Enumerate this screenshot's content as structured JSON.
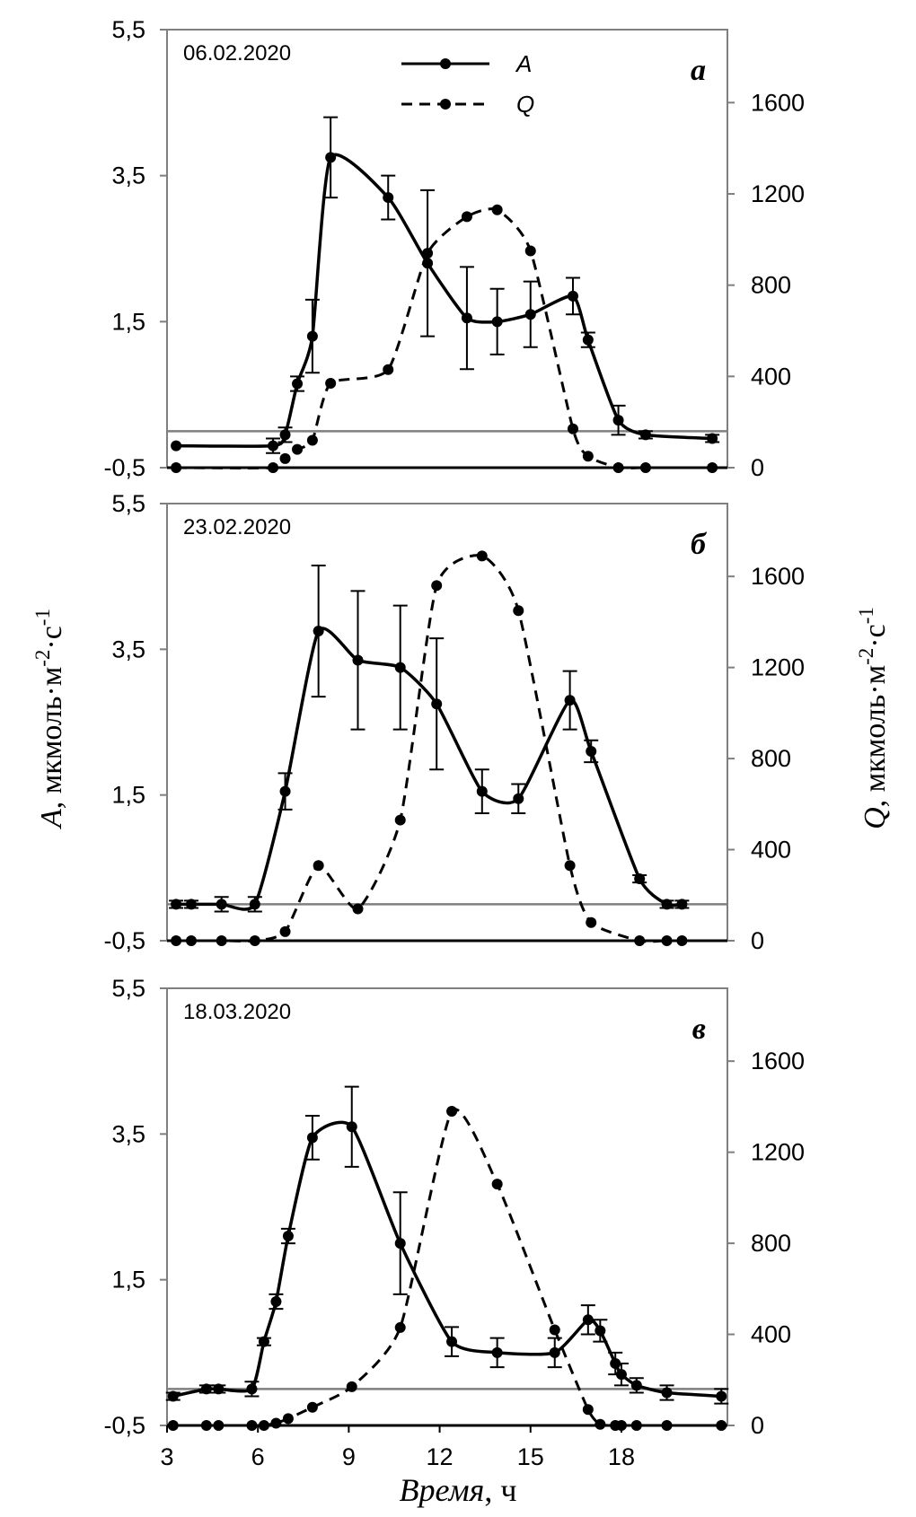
{
  "chart_data": {
    "type": "line",
    "xlabel": {
      "var": "Время",
      "unit": ", ч"
    },
    "ylabel_left": {
      "var": "A",
      "unit": ", мкмоль·м",
      "exp1": "-2",
      "mid": "·с",
      "exp2": "-1"
    },
    "ylabel_right": {
      "var": "Q",
      "unit": ", мкмоль·м",
      "exp1": "-2",
      "mid": "·с",
      "exp2": "-1"
    },
    "x_ticks": [
      3,
      6,
      9,
      12,
      15,
      18
    ],
    "x_tick_labels": [
      "3",
      "6",
      "9",
      "12",
      "15",
      "18"
    ],
    "xlim": [
      3,
      21.5
    ],
    "left_ylim": [
      -0.5,
      5.5
    ],
    "left_ticks": [
      "5,5",
      "3,5",
      "1,5",
      "-0,5"
    ],
    "left_tick_values": [
      5.5,
      3.5,
      1.5,
      -0.5
    ],
    "right_ylim": [
      0,
      1920
    ],
    "right_ticks": [
      "1600",
      "1200",
      "800",
      "400",
      "0"
    ],
    "right_tick_values": [
      1600,
      1200,
      800,
      400,
      0
    ],
    "reference_line_A": 0,
    "legend": [
      {
        "name": "A",
        "style": "solid"
      },
      {
        "name": "Q",
        "style": "dashed"
      }
    ],
    "panels": [
      {
        "date": "06.02.2020",
        "letter": "а",
        "A": {
          "x": [
            3.3,
            6.5,
            6.9,
            7.3,
            7.8,
            8.4,
            10.3,
            11.6,
            12.9,
            13.9,
            15.0,
            16.4,
            16.9,
            17.9,
            18.8,
            21.0
          ],
          "y": [
            -0.2,
            -0.2,
            -0.05,
            0.65,
            1.3,
            3.75,
            3.2,
            2.3,
            1.55,
            1.5,
            1.6,
            1.85,
            1.25,
            0.15,
            -0.05,
            -0.1
          ],
          "err": [
            0,
            0.1,
            0.1,
            0.1,
            0.5,
            0.55,
            0.3,
            1.0,
            0.7,
            0.45,
            0.45,
            0.25,
            0.1,
            0.2,
            0.05,
            0.05
          ]
        },
        "Q": {
          "x": [
            3.3,
            6.5,
            6.9,
            7.3,
            7.8,
            8.4,
            10.3,
            11.6,
            12.9,
            13.9,
            15.0,
            16.4,
            16.9,
            17.9,
            18.8,
            21.0
          ],
          "y": [
            0,
            0,
            40,
            80,
            120,
            370,
            430,
            940,
            1100,
            1130,
            950,
            170,
            50,
            0,
            0,
            0
          ]
        }
      },
      {
        "date": "23.02.2020",
        "letter": "б",
        "A": {
          "x": [
            3.3,
            3.8,
            4.8,
            5.9,
            6.9,
            8.0,
            9.3,
            10.7,
            11.9,
            13.4,
            14.6,
            16.3,
            17.0,
            18.6,
            19.5,
            20.0
          ],
          "y": [
            0,
            0,
            0,
            0,
            1.55,
            3.75,
            3.35,
            3.25,
            2.75,
            1.55,
            1.45,
            2.8,
            2.1,
            0.35,
            0,
            0
          ],
          "err": [
            0.05,
            0.05,
            0.1,
            0.1,
            0.25,
            0.9,
            0.95,
            0.85,
            0.9,
            0.3,
            0.2,
            0.4,
            0.15,
            0.05,
            0.05,
            0.05
          ]
        },
        "Q": {
          "x": [
            3.3,
            3.8,
            4.8,
            5.9,
            6.9,
            8.0,
            9.3,
            10.7,
            11.9,
            13.4,
            14.6,
            16.3,
            17.0,
            18.6,
            19.5,
            20.0
          ],
          "y": [
            0,
            0,
            0,
            0,
            40,
            330,
            140,
            530,
            1560,
            1690,
            1450,
            330,
            80,
            0,
            0,
            0
          ]
        }
      },
      {
        "date": "18.03.2020",
        "letter": "в",
        "A": {
          "x": [
            3.2,
            4.3,
            4.7,
            5.8,
            6.2,
            6.6,
            7.0,
            7.8,
            9.1,
            10.7,
            12.4,
            13.9,
            15.8,
            16.9,
            17.3,
            17.8,
            18.0,
            18.5,
            19.5,
            21.3
          ],
          "y": [
            -0.1,
            0,
            0,
            0,
            0.65,
            1.2,
            2.1,
            3.45,
            3.6,
            2.0,
            0.65,
            0.5,
            0.5,
            0.95,
            0.8,
            0.35,
            0.2,
            0.05,
            -0.05,
            -0.1
          ],
          "err": [
            0.05,
            0.05,
            0.05,
            0.1,
            0.05,
            0.1,
            0.1,
            0.3,
            0.55,
            0.7,
            0.2,
            0.2,
            0.2,
            0.2,
            0.15,
            0.15,
            0.15,
            0.1,
            0.1,
            0.1
          ]
        },
        "Q": {
          "x": [
            3.2,
            4.3,
            4.7,
            5.8,
            6.2,
            6.6,
            7.0,
            7.8,
            9.1,
            10.7,
            12.4,
            13.9,
            15.8,
            16.9,
            17.3,
            17.8,
            18.0,
            18.5,
            19.5,
            21.3
          ],
          "y": [
            0,
            0,
            0,
            0,
            0,
            10,
            30,
            80,
            170,
            430,
            1380,
            1060,
            420,
            70,
            5,
            0,
            0,
            0,
            0,
            0
          ]
        }
      }
    ]
  }
}
